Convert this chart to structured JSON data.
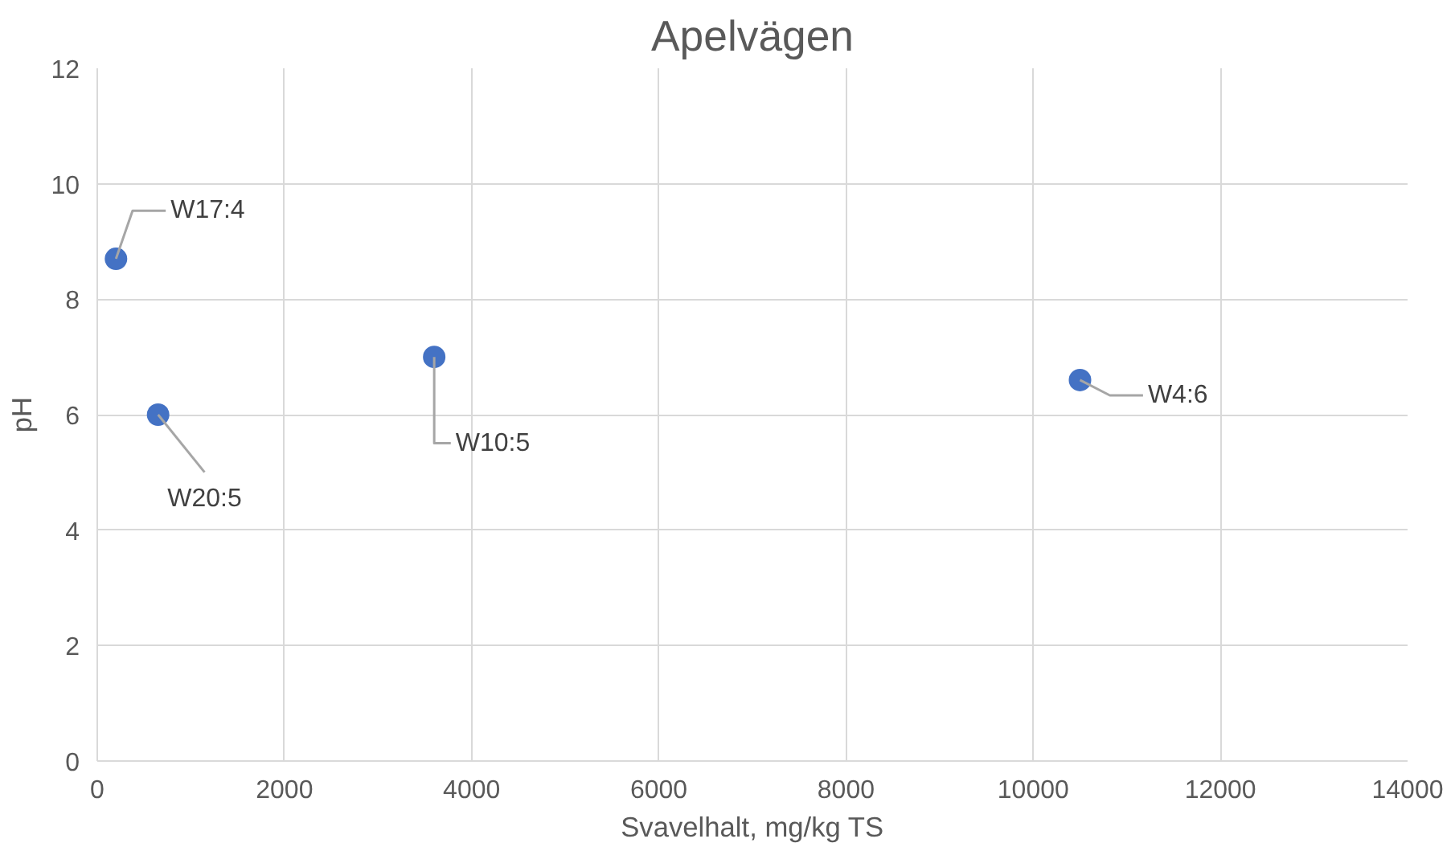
{
  "chart_data": {
    "type": "scatter",
    "title": "Apelvägen",
    "xlabel": "Svavelhalt, mg/kg TS",
    "ylabel": "pH",
    "x": [
      200,
      650,
      3600,
      10500
    ],
    "series": [
      {
        "color": "#4472c4",
        "values": [
          8.7,
          6.0,
          7.0,
          6.6
        ]
      }
    ],
    "annotations": [
      {
        "text": "W17:4",
        "x": 200,
        "y": 8.7
      },
      {
        "text": "W20:5",
        "x": 650,
        "y": 6.0
      },
      {
        "text": "W10:5",
        "x": 3600,
        "y": 7.0
      },
      {
        "text": "W4:6",
        "x": 10500,
        "y": 6.6
      }
    ],
    "xlim": [
      0,
      14000
    ],
    "xticks": [
      0,
      2000,
      4000,
      6000,
      8000,
      10000,
      12000,
      14000
    ],
    "ylim": [
      0,
      12
    ],
    "yticks": [
      0,
      2,
      4,
      6,
      8,
      10,
      12
    ],
    "grid": true,
    "marker": "circle"
  }
}
